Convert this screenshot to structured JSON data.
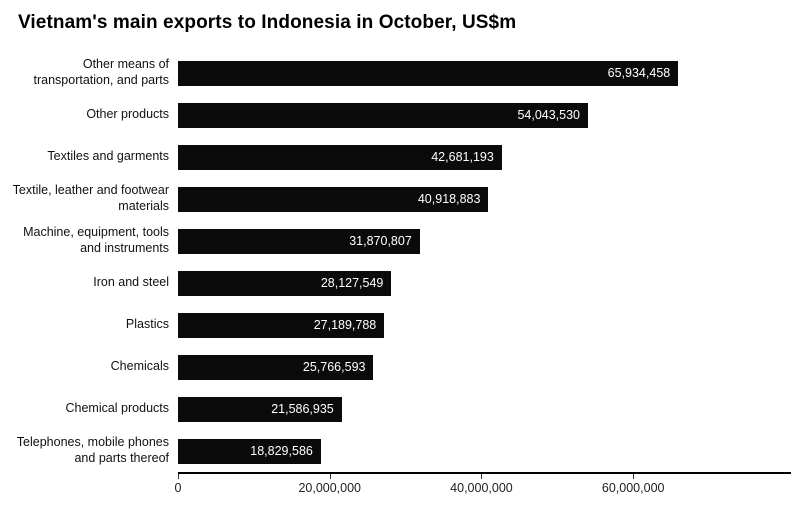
{
  "title": "Vietnam's main exports to Indonesia in October, US$m",
  "chart_data": {
    "type": "bar",
    "orientation": "horizontal",
    "title": "Vietnam's main exports to Indonesia in October, US$m",
    "categories": [
      "Other means of transportation, and parts",
      "Other products",
      "Textiles and garments",
      "Textile, leather and footwear materials",
      "Machine, equipment, tools and instruments",
      "Iron and steel",
      "Plastics",
      "Chemicals",
      "Chemical products",
      "Telephones, mobile phones and parts thereof"
    ],
    "values": [
      65934458,
      54043530,
      42681193,
      40918883,
      31870807,
      28127549,
      27189788,
      25766593,
      21586935,
      18829586
    ],
    "value_labels": [
      "65,934,458",
      "54,043,530",
      "42,681,193",
      "40,918,883",
      "31,870,807",
      "28,127,549",
      "27,189,788",
      "25,766,593",
      "21,586,935",
      "18,829,586"
    ],
    "xlabel": "",
    "ylabel": "",
    "xlim": [
      0,
      80800000
    ],
    "xticks": [
      {
        "value": 0,
        "label": "0"
      },
      {
        "value": 20000000,
        "label": "20,000,000"
      },
      {
        "value": 40000000,
        "label": "40,000,000"
      },
      {
        "value": 60000000,
        "label": "60,000,000"
      }
    ],
    "grid": false,
    "legend": false,
    "bar_color": "#0b0b0b",
    "value_label_color": "#ffffff",
    "background": "#ffffff"
  }
}
